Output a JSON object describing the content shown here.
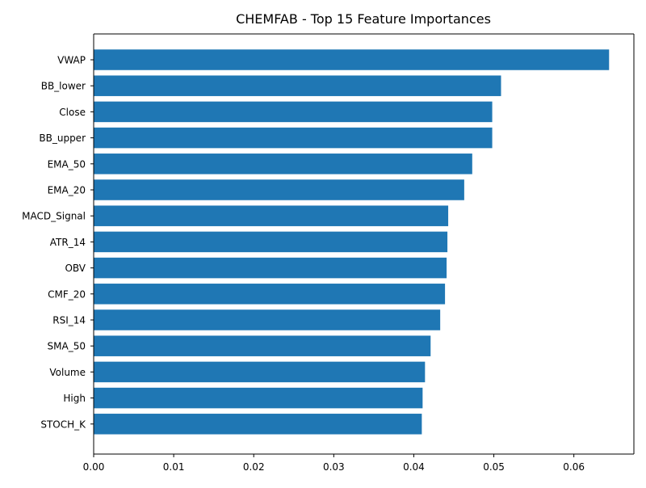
{
  "chart_data": {
    "type": "bar",
    "orientation": "horizontal",
    "title": "CHEMFAB - Top 15 Feature Importances",
    "xlabel": "",
    "ylabel": "",
    "categories": [
      "VWAP",
      "BB_lower",
      "Close",
      "BB_upper",
      "EMA_50",
      "EMA_20",
      "MACD_Signal",
      "ATR_14",
      "OBV",
      "CMF_20",
      "RSI_14",
      "SMA_50",
      "Volume",
      "High",
      "STOCH_K"
    ],
    "values": [
      0.0644,
      0.0509,
      0.0498,
      0.0498,
      0.0473,
      0.0463,
      0.0443,
      0.0442,
      0.0441,
      0.0439,
      0.0433,
      0.0421,
      0.0414,
      0.0411,
      0.041
    ],
    "xlim": [
      0,
      0.0675
    ],
    "xticks": [
      "0.00",
      "0.01",
      "0.02",
      "0.03",
      "0.04",
      "0.05",
      "0.06"
    ],
    "bar_color": "#1f77b4",
    "grid": false,
    "legend": "none"
  }
}
